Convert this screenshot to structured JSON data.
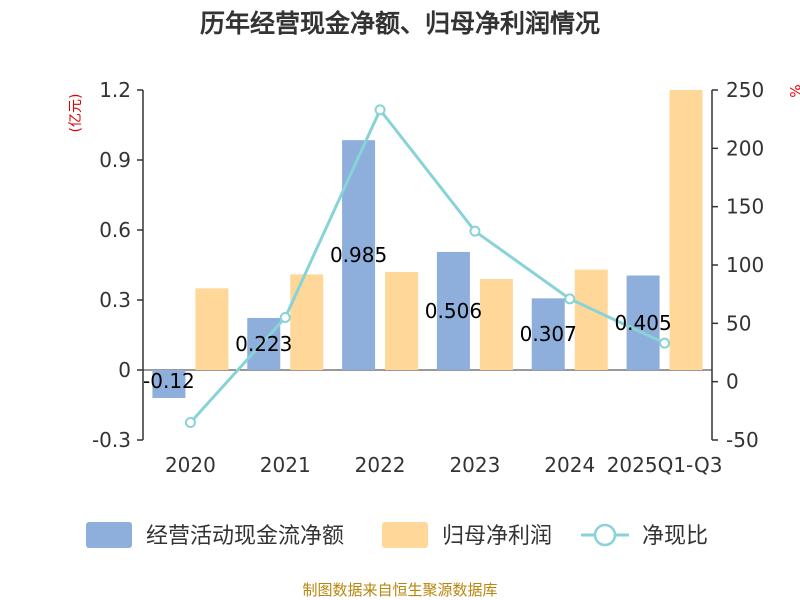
{
  "chart_data": {
    "type": "bar",
    "title": "历年经营现金净额、归母净利润情况",
    "categories": [
      "2020",
      "2021",
      "2022",
      "2023",
      "2024",
      "2025Q1-Q3"
    ],
    "series": [
      {
        "name": "经营活动现金流净额",
        "type": "bar",
        "axis": "left",
        "values": [
          -0.12,
          0.223,
          0.985,
          0.506,
          0.307,
          0.405
        ],
        "data_labels": [
          "-0.12",
          "0.223",
          "0.985",
          "0.506",
          "0.307",
          "0.405"
        ],
        "color": "#8eaedb"
      },
      {
        "name": "归母净利润",
        "type": "bar",
        "axis": "left",
        "values": [
          0.35,
          0.41,
          0.42,
          0.39,
          0.43,
          1.2
        ],
        "color": "#ffd899"
      },
      {
        "name": "净现比",
        "type": "line",
        "axis": "right",
        "values": [
          -35,
          55,
          233,
          129,
          71,
          33
        ],
        "color": "#88d3d8"
      }
    ],
    "y_left": {
      "unit_label": "(亿元)",
      "ylim": [
        -0.3,
        1.2
      ],
      "ticks": [
        "-0.3",
        "0",
        "0.3",
        "0.6",
        "0.9",
        "1.2"
      ],
      "tick_values": [
        -0.3,
        0,
        0.3,
        0.6,
        0.9,
        1.2
      ]
    },
    "y_right": {
      "unit_label": "%",
      "ylim": [
        -50,
        250
      ],
      "ticks": [
        "-50",
        "0",
        "50",
        "100",
        "150",
        "200",
        "250"
      ],
      "tick_values": [
        -50,
        0,
        50,
        100,
        150,
        200,
        250
      ]
    },
    "grid": false,
    "legend_position": "bottom"
  },
  "source": "制图数据来自恒生聚源数据库"
}
